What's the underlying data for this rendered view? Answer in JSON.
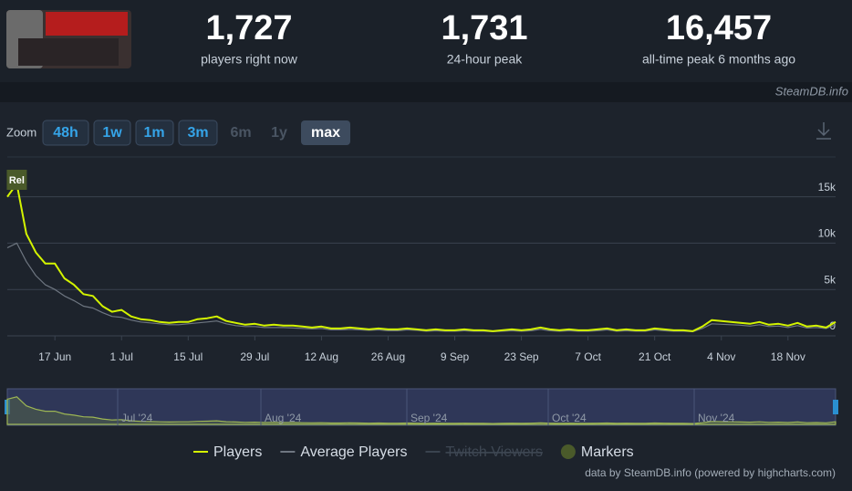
{
  "header": {
    "stats": [
      {
        "value": "1,727",
        "label": "players right now"
      },
      {
        "value": "1,731",
        "label": "24-hour peak"
      },
      {
        "value": "16,457",
        "label": "all-time peak 6 months ago"
      }
    ],
    "site": "SteamDB.info"
  },
  "zoom": {
    "label": "Zoom",
    "buttons": [
      "48h",
      "1w",
      "1m",
      "3m",
      "6m",
      "1y",
      "max"
    ]
  },
  "chart_data": {
    "type": "line",
    "x": [
      null,
      null,
      null,
      null,
      null,
      "17 Jun",
      null,
      null,
      null,
      null,
      null,
      null,
      "1 Jul",
      null,
      null,
      null,
      null,
      null,
      null,
      "15 Jul",
      null,
      null,
      null,
      null,
      null,
      null,
      "29 Jul",
      null,
      null,
      null,
      null,
      null,
      null,
      "12 Aug",
      null,
      null,
      null,
      null,
      null,
      null,
      "26 Aug",
      null,
      null,
      null,
      null,
      null,
      null,
      "9 Sep",
      null,
      null,
      null,
      null,
      null,
      null,
      "23 Sep",
      null,
      null,
      null,
      null,
      null,
      null,
      "7 Oct",
      null,
      null,
      null,
      null,
      null,
      null,
      "21 Oct",
      null,
      null,
      null,
      null,
      null,
      null,
      "4 Nov",
      null,
      null,
      null,
      null,
      null,
      null,
      "18 Nov",
      null,
      null,
      null,
      null,
      null
    ],
    "series": [
      {
        "name": "Players",
        "color": "#d4f400",
        "values": [
          15000,
          16400,
          11000,
          9000,
          7800,
          7800,
          6200,
          5500,
          4500,
          4300,
          3200,
          2600,
          2800,
          2100,
          1800,
          1700,
          1500,
          1400,
          1500,
          1500,
          1800,
          1900,
          2100,
          1600,
          1400,
          1200,
          1300,
          1100,
          1200,
          1100,
          1100,
          1000,
          900,
          1000,
          800,
          800,
          900,
          800,
          700,
          800,
          700,
          700,
          800,
          700,
          600,
          700,
          600,
          600,
          700,
          600,
          600,
          500,
          600,
          700,
          600,
          700,
          900,
          700,
          600,
          700,
          600,
          600,
          700,
          800,
          600,
          700,
          600,
          600,
          800,
          700,
          600,
          600,
          500,
          1000,
          1700,
          1600,
          1500,
          1400,
          1300,
          1500,
          1200,
          1300,
          1100,
          1400,
          1000,
          1100,
          900,
          1500
        ]
      },
      {
        "name": "Average Players",
        "color": "#6e7681",
        "values": [
          9500,
          10000,
          8000,
          6500,
          5500,
          5000,
          4300,
          3800,
          3200,
          3000,
          2500,
          2100,
          2000,
          1700,
          1500,
          1400,
          1300,
          1200,
          1200,
          1300,
          1400,
          1500,
          1600,
          1300,
          1100,
          1000,
          1000,
          900,
          900,
          900,
          850,
          800,
          750,
          800,
          650,
          650,
          700,
          650,
          600,
          650,
          550,
          550,
          650,
          600,
          500,
          550,
          500,
          500,
          550,
          500,
          500,
          450,
          500,
          550,
          500,
          550,
          700,
          550,
          500,
          550,
          500,
          500,
          550,
          650,
          500,
          550,
          500,
          500,
          650,
          550,
          500,
          500,
          450,
          800,
          1300,
          1250,
          1200,
          1150,
          1050,
          1200,
          1000,
          1050,
          900,
          1100,
          850,
          900,
          800,
          1200
        ]
      }
    ],
    "legend_extra": [
      {
        "name": "Twitch Viewers",
        "hidden": true
      },
      {
        "name": "Markers",
        "color": "#4a5a2a"
      }
    ],
    "markers": [
      {
        "label": "Rel",
        "at": 1
      }
    ],
    "ylim": [
      0,
      19000
    ],
    "yticks": [
      0,
      {
        "value": 5000,
        "label": "5k"
      },
      {
        "value": 10000,
        "label": "10k"
      },
      {
        "value": 15000,
        "label": "15k"
      }
    ],
    "grid": true,
    "navigator_labels": [
      "Jul '24",
      "Aug '24",
      "Sep '24",
      "Oct '24",
      "Nov '24"
    ],
    "credit": "data by SteamDB.info (powered by highcharts.com)"
  }
}
